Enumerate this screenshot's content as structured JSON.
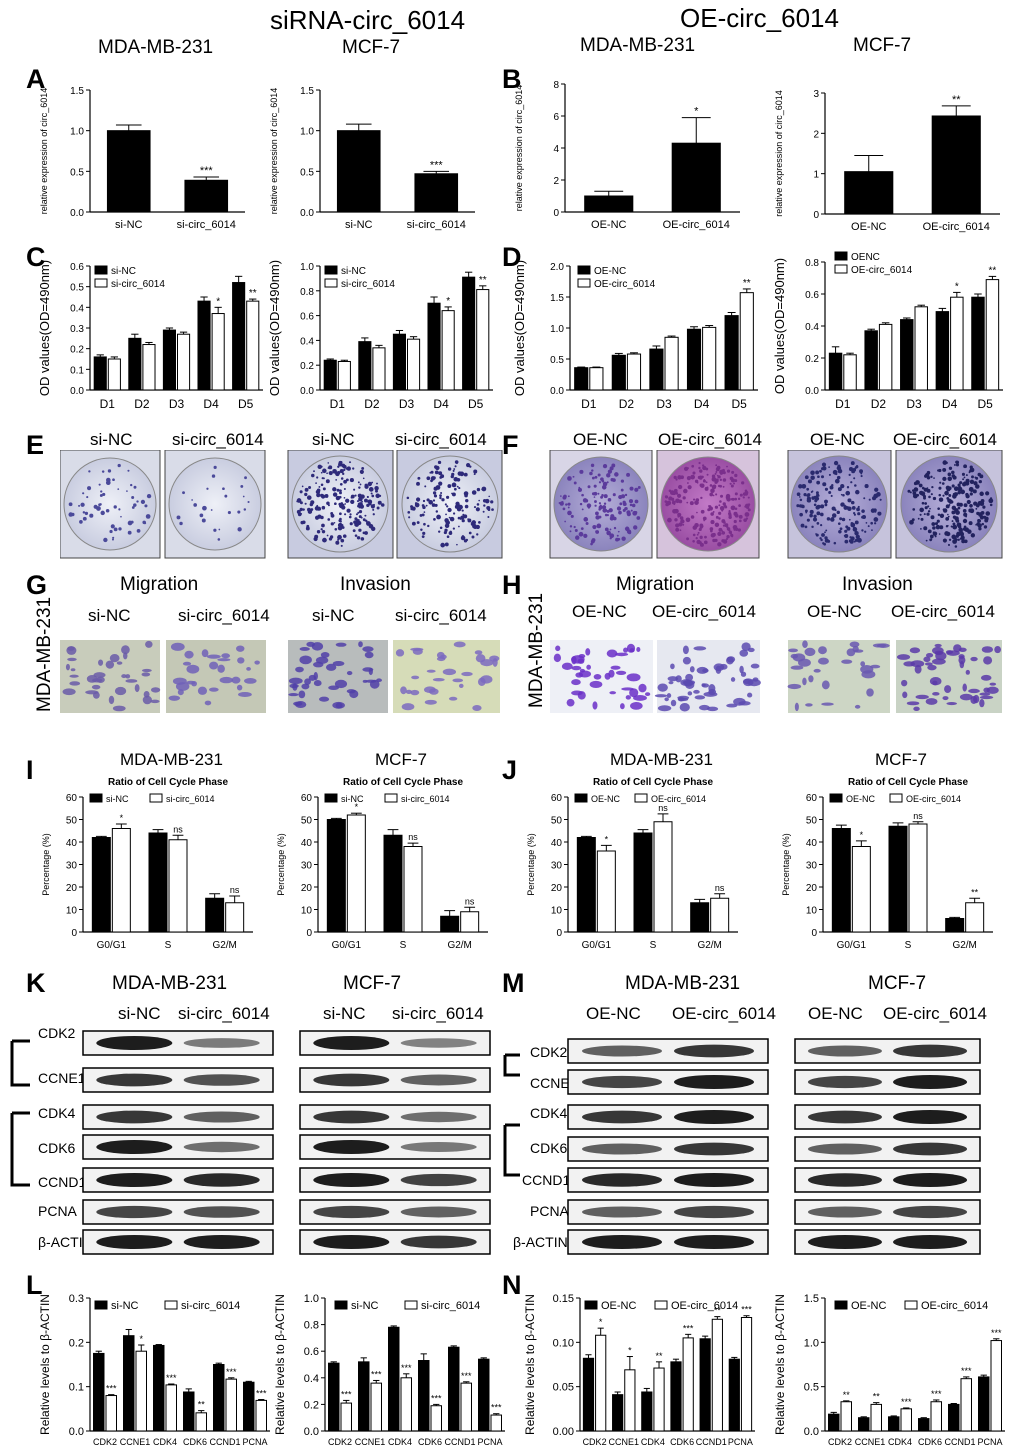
{
  "headers": {
    "left": "siRNA-circ_6014",
    "right": "OE-circ_6014",
    "cells_left": [
      "MDA-MB-231",
      "MCF-7"
    ],
    "cells_right": [
      "MDA-MB-231",
      "MCF-7"
    ]
  },
  "colors": {
    "dark": "#000000",
    "light": "#ffffff",
    "stain_pale": "#9a92c8",
    "stain_dark": "#3a2f86",
    "stain_magenta": "#9b3fa3"
  },
  "row_E": {
    "si_labels": [
      "si-NC",
      "si-circ_6014",
      "si-NC",
      "si-circ_6014"
    ],
    "oe_labels": [
      "OE-NC",
      "OE-circ_6014",
      "OE-NC",
      "OE-circ_6014"
    ]
  },
  "row_G": {
    "left_titles": [
      "Migration",
      "Invasion"
    ],
    "right_titles": [
      "Migration",
      "Invasion"
    ],
    "cell_label": "MDA-MB-231"
  },
  "row_IJ_titles": [
    "MDA-MB-231",
    "MCF-7",
    "MDA-MB-231",
    "MCF-7"
  ],
  "row_K": {
    "titles": [
      "MDA-MB-231",
      "MCF-7",
      "MDA-MB-231",
      "MCF-7"
    ],
    "si_lanes": [
      "si-NC",
      "si-circ_6014"
    ],
    "oe_lanes": [
      "OE-NC",
      "OE-circ_6014"
    ],
    "bands": [
      "CDK2",
      "CCNE1",
      "CDK4",
      "CDK6",
      "CCND1",
      "PCNA",
      "β-ACTIN"
    ]
  },
  "chart_data": [
    {
      "panel": "A",
      "type": "bar",
      "categories": [
        "si-NC",
        "si-circ_6014"
      ],
      "values": [
        1.0,
        0.39
      ],
      "errors": [
        0.07,
        0.04
      ],
      "sig": [
        "",
        "***"
      ],
      "ylabel": "relative expression of circ_6014",
      "ylim": [
        0,
        1.5
      ],
      "yticks": [
        0,
        0.5,
        1.0,
        1.5
      ],
      "tick_labels": [
        "0.0",
        "0.5",
        "1.0",
        "1.5"
      ]
    },
    {
      "panel": "A2",
      "type": "bar",
      "categories": [
        "si-NC",
        "si-circ_6014"
      ],
      "values": [
        1.0,
        0.47
      ],
      "errors": [
        0.08,
        0.03
      ],
      "sig": [
        "",
        "***"
      ],
      "ylabel": "relative expression of circ_6014",
      "ylim": [
        0,
        1.5
      ],
      "yticks": [
        0,
        0.5,
        1.0,
        1.5
      ],
      "tick_labels": [
        "0.0",
        "0.5",
        "1.0",
        "1.5"
      ]
    },
    {
      "panel": "B",
      "type": "bar",
      "categories": [
        "OE-NC",
        "OE-circ_6014"
      ],
      "values": [
        1.0,
        4.3
      ],
      "errors": [
        0.3,
        1.6
      ],
      "sig": [
        "",
        "*"
      ],
      "ylabel": "relative expression of circ_6014",
      "ylim": [
        0,
        8
      ],
      "yticks": [
        0,
        2,
        4,
        6,
        8
      ],
      "tick_labels": [
        "0",
        "2",
        "4",
        "6",
        "8"
      ]
    },
    {
      "panel": "B2",
      "type": "bar",
      "categories": [
        "OE-NC",
        "OE-circ_6014"
      ],
      "values": [
        1.05,
        2.43
      ],
      "errors": [
        0.4,
        0.25
      ],
      "sig": [
        "",
        "**"
      ],
      "ylabel": "relative expression of circ_6014",
      "ylim": [
        0,
        3
      ],
      "yticks": [
        0,
        1,
        2,
        3
      ],
      "tick_labels": [
        "0",
        "1",
        "2",
        "3"
      ]
    },
    {
      "panel": "C",
      "type": "bar",
      "categories": [
        "D1",
        "D2",
        "D3",
        "D4",
        "D5"
      ],
      "series": [
        {
          "name": "si-NC",
          "values": [
            0.16,
            0.25,
            0.29,
            0.43,
            0.52
          ]
        },
        {
          "name": "si-circ_6014",
          "values": [
            0.15,
            0.22,
            0.27,
            0.37,
            0.43
          ]
        }
      ],
      "errors": [
        [
          0.01,
          0.02,
          0.01,
          0.02,
          0.03
        ],
        [
          0.01,
          0.01,
          0.01,
          0.03,
          0.01
        ]
      ],
      "sig": [
        [
          "",
          "",
          "",
          "",
          ""
        ],
        [
          "",
          "",
          "",
          "*",
          "**"
        ]
      ],
      "ylabel": "OD values(OD=490nm)",
      "ylim": [
        0,
        0.6
      ],
      "yticks": [
        0,
        0.1,
        0.2,
        0.3,
        0.4,
        0.5,
        0.6
      ],
      "tick_labels": [
        "0.0",
        "0.1",
        "0.2",
        "0.3",
        "0.4",
        "0.5",
        "0.6"
      ]
    },
    {
      "panel": "C2",
      "type": "bar",
      "categories": [
        "D1",
        "D2",
        "D3",
        "D4",
        "D5"
      ],
      "series": [
        {
          "name": "si-NC",
          "values": [
            0.24,
            0.39,
            0.45,
            0.7,
            0.91
          ]
        },
        {
          "name": "si-circ_6014",
          "values": [
            0.23,
            0.34,
            0.41,
            0.64,
            0.81
          ]
        }
      ],
      "errors": [
        [
          0.01,
          0.03,
          0.03,
          0.05,
          0.04
        ],
        [
          0.01,
          0.02,
          0.02,
          0.03,
          0.03
        ]
      ],
      "sig": [
        [
          "",
          "",
          "",
          "",
          ""
        ],
        [
          "",
          "",
          "",
          "*",
          "**"
        ]
      ],
      "ylabel": "OD values(OD=490nm)",
      "ylim": [
        0,
        1.0
      ],
      "yticks": [
        0,
        0.2,
        0.4,
        0.6,
        0.8,
        1.0
      ],
      "tick_labels": [
        "0.0",
        "0.2",
        "0.4",
        "0.6",
        "0.8",
        "1.0"
      ]
    },
    {
      "panel": "D",
      "type": "bar",
      "categories": [
        "D1",
        "D2",
        "D3",
        "D4",
        "D5"
      ],
      "series": [
        {
          "name": "OE-NC",
          "values": [
            0.36,
            0.56,
            0.66,
            0.98,
            1.2
          ]
        },
        {
          "name": "OE-circ_6014",
          "values": [
            0.36,
            0.58,
            0.85,
            1.01,
            1.57
          ]
        }
      ],
      "errors": [
        [
          0.01,
          0.03,
          0.05,
          0.04,
          0.05
        ],
        [
          0.01,
          0.02,
          0.02,
          0.03,
          0.06
        ]
      ],
      "sig": [
        [
          "",
          "",
          "",
          "",
          ""
        ],
        [
          "",
          "",
          "",
          "",
          "**"
        ]
      ],
      "ylabel": "OD values(OD=490nm)",
      "ylim": [
        0,
        2.0
      ],
      "yticks": [
        0,
        0.5,
        1.0,
        1.5,
        2.0
      ],
      "tick_labels": [
        "0.0",
        "0.5",
        "1.0",
        "1.5",
        "2.0"
      ]
    },
    {
      "panel": "D2",
      "type": "bar",
      "categories": [
        "D1",
        "D2",
        "D3",
        "D4",
        "D5"
      ],
      "series": [
        {
          "name": "OENC",
          "values": [
            0.23,
            0.37,
            0.44,
            0.49,
            0.58
          ]
        },
        {
          "name": "OE-circ_6014",
          "values": [
            0.22,
            0.41,
            0.52,
            0.58,
            0.69
          ]
        }
      ],
      "errors": [
        [
          0.04,
          0.01,
          0.01,
          0.02,
          0.02
        ],
        [
          0.01,
          0.01,
          0.01,
          0.03,
          0.02
        ]
      ],
      "sig": [
        [
          "",
          "",
          "",
          "",
          ""
        ],
        [
          "",
          "",
          "",
          "*",
          "**"
        ]
      ],
      "ylabel": "OD values(OD=490nm)",
      "ylim": [
        0,
        0.8
      ],
      "yticks": [
        0,
        0.2,
        0.4,
        0.6,
        0.8
      ],
      "tick_labels": [
        "0.0",
        "0.2",
        "0.4",
        "0.6",
        "0.8"
      ]
    },
    {
      "panel": "I",
      "type": "bar",
      "title": "Ratio of Cell Cycle Phase",
      "categories": [
        "G0/G1",
        "S",
        "G2/M"
      ],
      "series": [
        {
          "name": "si-NC",
          "values": [
            42,
            44,
            15
          ]
        },
        {
          "name": "si-circ_6014",
          "values": [
            46,
            41,
            13
          ]
        }
      ],
      "errors": [
        [
          0.5,
          1.5,
          2
        ],
        [
          2,
          2,
          3
        ]
      ],
      "sig": [
        [
          "",
          "",
          ""
        ],
        [
          "*",
          "ns",
          "ns"
        ]
      ],
      "ylabel": "Percentage (%)",
      "ylim": [
        0,
        60
      ],
      "yticks": [
        0,
        10,
        20,
        30,
        40,
        50,
        60
      ],
      "tick_labels": [
        "0",
        "10",
        "20",
        "30",
        "40",
        "50",
        "60"
      ]
    },
    {
      "panel": "I2",
      "type": "bar",
      "title": "Ratio of Cell Cycle Phase",
      "categories": [
        "G0/G1",
        "S",
        "G2/M"
      ],
      "series": [
        {
          "name": "si-NC",
          "values": [
            50,
            43,
            7
          ]
        },
        {
          "name": "si-circ_6014",
          "values": [
            52,
            38,
            9
          ]
        }
      ],
      "errors": [
        [
          0.5,
          2.5,
          2.5
        ],
        [
          0.8,
          1.5,
          2
        ]
      ],
      "sig": [
        [
          "",
          "",
          ""
        ],
        [
          "*",
          "ns",
          "ns"
        ]
      ],
      "ylabel": "Percentage (%)",
      "ylim": [
        0,
        60
      ],
      "yticks": [
        0,
        10,
        20,
        30,
        40,
        50,
        60
      ],
      "tick_labels": [
        "0",
        "10",
        "20",
        "30",
        "40",
        "50",
        "60"
      ]
    },
    {
      "panel": "J",
      "type": "bar",
      "title": "Ratio of Cell Cycle Phase",
      "categories": [
        "G0/G1",
        "S",
        "G2/M"
      ],
      "series": [
        {
          "name": "OE-NC",
          "values": [
            42,
            44,
            13
          ]
        },
        {
          "name": "OE-circ_6014",
          "values": [
            36,
            49,
            15
          ]
        }
      ],
      "errors": [
        [
          0.5,
          1.5,
          1.5
        ],
        [
          2.5,
          3.5,
          2
        ]
      ],
      "sig": [
        [
          "",
          "",
          ""
        ],
        [
          "*",
          "ns",
          "ns"
        ]
      ],
      "ylabel": "Percentage (%)",
      "ylim": [
        0,
        60
      ],
      "yticks": [
        0,
        10,
        20,
        30,
        40,
        50,
        60
      ],
      "tick_labels": [
        "0",
        "10",
        "20",
        "30",
        "40",
        "50",
        "60"
      ]
    },
    {
      "panel": "J2",
      "type": "bar",
      "title": "Ratio of Cell Cycle Phase",
      "categories": [
        "G0/G1",
        "S",
        "G2/M"
      ],
      "series": [
        {
          "name": "OE-NC",
          "values": [
            46,
            47,
            6
          ]
        },
        {
          "name": "OE-circ_6014",
          "values": [
            38,
            48,
            13
          ]
        }
      ],
      "errors": [
        [
          1.5,
          1.5,
          0.5
        ],
        [
          2.5,
          1,
          2
        ]
      ],
      "sig": [
        [
          "",
          "",
          ""
        ],
        [
          "*",
          "ns",
          "**"
        ]
      ],
      "ylabel": "Percentage (%)",
      "ylim": [
        0,
        60
      ],
      "yticks": [
        0,
        10,
        20,
        30,
        40,
        50,
        60
      ],
      "tick_labels": [
        "0",
        "10",
        "20",
        "30",
        "40",
        "50",
        "60"
      ]
    },
    {
      "panel": "L",
      "type": "bar",
      "categories": [
        "CDK2",
        "CCNE1",
        "CDK4",
        "CDK6",
        "CCND1",
        "PCNA"
      ],
      "series": [
        {
          "name": "si-NC",
          "values": [
            0.175,
            0.215,
            0.193,
            0.088,
            0.15,
            0.11
          ]
        },
        {
          "name": "si-circ_6014",
          "values": [
            0.08,
            0.18,
            0.104,
            0.041,
            0.117,
            0.069
          ]
        }
      ],
      "errors": [
        [
          0.005,
          0.014,
          0.002,
          0.007,
          0.003,
          0.002
        ],
        [
          0.002,
          0.014,
          0.002,
          0.005,
          0.003,
          0.002
        ]
      ],
      "sig": [
        [
          "",
          "",
          "",
          "",
          "",
          ""
        ],
        [
          "***",
          "*",
          "***",
          "**",
          "***",
          "***"
        ]
      ],
      "ylabel": "Relative levels to β-ACTIN",
      "ylim": [
        0,
        0.3
      ],
      "yticks": [
        0,
        0.1,
        0.2,
        0.3
      ],
      "tick_labels": [
        "0.0",
        "0.1",
        "0.2",
        "0.3"
      ]
    },
    {
      "panel": "L2",
      "type": "bar",
      "categories": [
        "CDK2",
        "CCNE1",
        "CDK4",
        "CDK6",
        "CCND1",
        "PCNA"
      ],
      "series": [
        {
          "name": "si-NC",
          "values": [
            0.51,
            0.52,
            0.78,
            0.53,
            0.63,
            0.54
          ]
        },
        {
          "name": "si-circ_6014",
          "values": [
            0.21,
            0.36,
            0.4,
            0.19,
            0.36,
            0.12
          ]
        }
      ],
      "errors": [
        [
          0.01,
          0.03,
          0.01,
          0.05,
          0.01,
          0.01
        ],
        [
          0.02,
          0.02,
          0.03,
          0.01,
          0.01,
          0.01
        ]
      ],
      "sig": [
        [
          "",
          "",
          "",
          "",
          "",
          ""
        ],
        [
          "***",
          "***",
          "***",
          "***",
          "***",
          "***"
        ]
      ],
      "ylabel": "Relative levels to β-ACTIN",
      "ylim": [
        0,
        1.0
      ],
      "yticks": [
        0,
        0.2,
        0.4,
        0.6,
        0.8,
        1.0
      ],
      "tick_labels": [
        "0.0",
        "0.2",
        "0.4",
        "0.6",
        "0.8",
        "1.0"
      ]
    },
    {
      "panel": "N",
      "type": "bar",
      "categories": [
        "CDK2",
        "CCNE1",
        "CDK4",
        "CDK6",
        "CCND1",
        "PCNA"
      ],
      "series": [
        {
          "name": "OE-NC",
          "values": [
            0.082,
            0.041,
            0.044,
            0.078,
            0.104,
            0.081
          ]
        },
        {
          "name": "OE-circ_6014",
          "values": [
            0.108,
            0.069,
            0.071,
            0.105,
            0.126,
            0.128
          ]
        }
      ],
      "errors": [
        [
          0.004,
          0.003,
          0.004,
          0.003,
          0.003,
          0.002
        ],
        [
          0.008,
          0.015,
          0.007,
          0.004,
          0.003,
          0.002
        ]
      ],
      "sig": [
        [
          "",
          "",
          "",
          "",
          "",
          ""
        ],
        [
          "*",
          "*",
          "**",
          "***",
          "**",
          "***"
        ]
      ],
      "ylabel": "Relative levels to β-ACTIN",
      "ylim": [
        0,
        0.15
      ],
      "yticks": [
        0,
        0.05,
        0.1,
        0.15
      ],
      "tick_labels": [
        "0.00",
        "0.05",
        "0.10",
        "0.15"
      ]
    },
    {
      "panel": "N2",
      "type": "bar",
      "categories": [
        "CDK2",
        "CCNE1",
        "CDK4",
        "CDK6",
        "CCND1",
        "PCNA"
      ],
      "series": [
        {
          "name": "OE-NC",
          "values": [
            0.19,
            0.15,
            0.16,
            0.14,
            0.3,
            0.61
          ]
        },
        {
          "name": "OE-circ_6014",
          "values": [
            0.33,
            0.3,
            0.25,
            0.33,
            0.59,
            1.02
          ]
        }
      ],
      "errors": [
        [
          0.02,
          0.01,
          0.01,
          0.01,
          0.01,
          0.02
        ],
        [
          0.01,
          0.02,
          0.01,
          0.02,
          0.02,
          0.02
        ]
      ],
      "sig": [
        [
          "",
          "",
          "",
          "",
          "",
          ""
        ],
        [
          "**",
          "**",
          "***",
          "***",
          "***",
          "***"
        ]
      ],
      "ylabel": "Relative levels to β-ACTIN",
      "ylim": [
        0,
        1.5
      ],
      "yticks": [
        0,
        0.5,
        1.0,
        1.5
      ],
      "tick_labels": [
        "0.0",
        "0.5",
        "1.0",
        "1.5"
      ]
    }
  ]
}
